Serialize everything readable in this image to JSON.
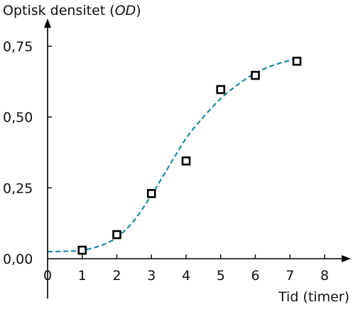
{
  "chart_data": {
    "type": "scatter",
    "title": "",
    "ylabel_prefix": "Optisk densitet (",
    "ylabel_italic": "OD",
    "ylabel_suffix": ")",
    "xlabel": "Tid (timer)",
    "xlim": [
      0,
      8
    ],
    "ylim": [
      0,
      0.75
    ],
    "x_ticks": [
      0,
      1,
      2,
      3,
      4,
      5,
      6,
      7,
      8
    ],
    "x_tick_labels": [
      "0",
      "1",
      "2",
      "3",
      "4",
      "5",
      "6",
      "7",
      "8"
    ],
    "y_ticks": [
      0,
      0.25,
      0.5,
      0.75
    ],
    "y_tick_labels": [
      "0,00",
      "0,25",
      "0,50",
      "0,75"
    ],
    "grid": false,
    "series": [
      {
        "marker": "open-square",
        "color": "#000000",
        "x": [
          1,
          2,
          3,
          4,
          5,
          6,
          7.2
        ],
        "y": [
          0.03,
          0.085,
          0.23,
          0.345,
          0.597,
          0.647,
          0.697
        ]
      }
    ],
    "fit_curve": {
      "style": "dashed",
      "color": "#1a8aa6",
      "x_range": [
        0,
        7.1
      ],
      "x": [
        0,
        0.5,
        1,
        1.5,
        2,
        2.5,
        3,
        3.5,
        4,
        4.5,
        5,
        5.5,
        6,
        6.5,
        7,
        7.1
      ],
      "y": [
        0.025,
        0.026,
        0.03,
        0.045,
        0.075,
        0.135,
        0.225,
        0.325,
        0.425,
        0.5,
        0.565,
        0.615,
        0.655,
        0.682,
        0.7,
        0.703
      ]
    }
  }
}
